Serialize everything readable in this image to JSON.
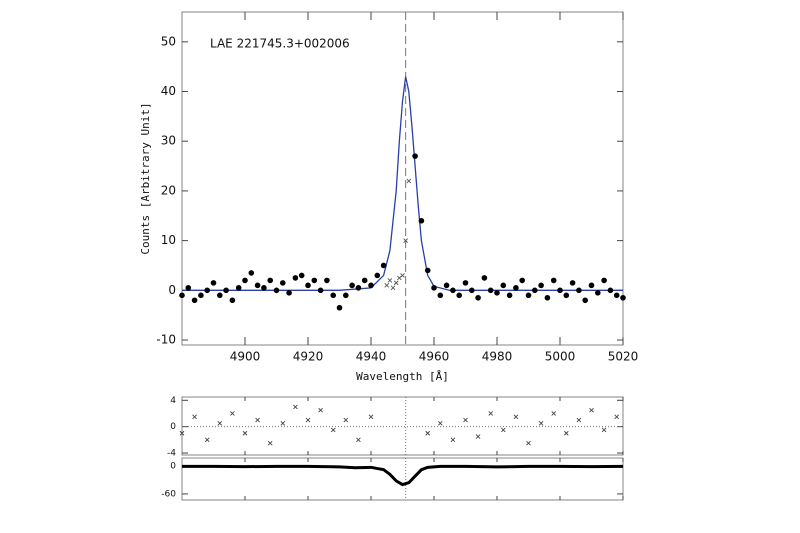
{
  "chart_data": [
    {
      "type": "scatter",
      "annotation": "LAE 221745.3+002006",
      "xlabel": "Wavelength [Å]",
      "ylabel": "Counts [Arbitrary Unit]",
      "xlim": [
        4880,
        5020
      ],
      "ylim": [
        -11,
        56
      ],
      "xticks": [
        4900,
        4920,
        4940,
        4960,
        4980,
        5000,
        5020
      ],
      "yticks": [
        -10,
        0,
        10,
        20,
        30,
        40,
        50
      ],
      "vline": 4951,
      "series": [
        {
          "marker": "line",
          "color": "#2a3fa8",
          "x": [
            4880,
            4930,
            4940,
            4944,
            4946,
            4948,
            4949,
            4950,
            4951,
            4952,
            4953,
            4954,
            4955,
            4956,
            4958,
            4960,
            4965,
            5020
          ],
          "values": [
            0,
            0,
            0.5,
            3,
            8,
            20,
            30,
            38,
            43,
            40,
            33,
            25,
            17,
            10,
            3,
            0.8,
            0,
            0
          ]
        },
        {
          "marker": "dot",
          "color": "#000000",
          "x": [
            4880,
            4882,
            4884,
            4886,
            4888,
            4890,
            4892,
            4894,
            4896,
            4898,
            4900,
            4902,
            4904,
            4906,
            4908,
            4910,
            4912,
            4914,
            4916,
            4918,
            4920,
            4922,
            4924,
            4926,
            4928,
            4930,
            4932,
            4934,
            4936,
            4938,
            4940,
            4942,
            4944,
            4954,
            4956,
            4958,
            4960,
            4962,
            4964,
            4966,
            4968,
            4970,
            4972,
            4974,
            4976,
            4978,
            4980,
            4982,
            4984,
            4986,
            4988,
            4990,
            4992,
            4994,
            4996,
            4998,
            5000,
            5002,
            5004,
            5006,
            5008,
            5010,
            5012,
            5014,
            5016,
            5018,
            5020
          ],
          "values": [
            -1,
            0.5,
            -2,
            -1,
            0,
            1.5,
            -1,
            0,
            -2,
            0.5,
            2,
            3.5,
            1,
            0.5,
            2,
            0,
            1.5,
            -0.5,
            2.5,
            3,
            1,
            2,
            0,
            2,
            -1,
            -3.5,
            -1,
            1,
            0.5,
            2,
            1,
            3,
            5,
            27,
            14,
            4,
            0.5,
            -1,
            1,
            0,
            -1,
            1.5,
            0,
            -1.5,
            2.5,
            0,
            -0.5,
            1,
            -1,
            0.5,
            2,
            -1,
            0,
            1,
            -1.5,
            2,
            0,
            -1,
            1.5,
            0,
            -2,
            1,
            -0.5,
            2,
            0,
            -1,
            -1.5
          ]
        },
        {
          "marker": "x",
          "color": "#555555",
          "x": [
            4945,
            4946,
            4947,
            4948,
            4949,
            4950,
            4951,
            4952
          ],
          "values": [
            1,
            2,
            0.5,
            1.5,
            2.5,
            3,
            10,
            22
          ]
        }
      ]
    },
    {
      "type": "scatter",
      "xlim": [
        4880,
        5020
      ],
      "ylim": [
        -4.3,
        4.5
      ],
      "yticks": [
        -4,
        0,
        4
      ],
      "vline": 4951,
      "hline": 0,
      "series": [
        {
          "marker": "x",
          "color": "#444444",
          "x": [
            4880,
            4884,
            4888,
            4892,
            4896,
            4900,
            4904,
            4908,
            4912,
            4916,
            4920,
            4924,
            4928,
            4932,
            4936,
            4940,
            4958,
            4962,
            4966,
            4970,
            4974,
            4978,
            4982,
            4986,
            4990,
            4994,
            4998,
            5002,
            5006,
            5010,
            5014,
            5018
          ],
          "values": [
            -1,
            1.5,
            -2,
            0.5,
            2,
            -1,
            1,
            -2.5,
            0.5,
            3,
            1,
            2.5,
            -0.5,
            1,
            -2,
            1.5,
            -1,
            0.5,
            -2,
            1,
            -1.5,
            2,
            -0.5,
            1.5,
            -2.5,
            0.5,
            2,
            -1,
            1,
            2.5,
            -0.5,
            1.5
          ]
        }
      ]
    },
    {
      "type": "scatter",
      "xlim": [
        4880,
        5020
      ],
      "ylim": [
        -73,
        17
      ],
      "yticks": [
        0,
        -60
      ],
      "vline": 4951,
      "series": [
        {
          "marker": "line",
          "color": "#000000",
          "x": [
            4880,
            4890,
            4900,
            4910,
            4920,
            4930,
            4935,
            4940,
            4944,
            4946,
            4948,
            4950,
            4952,
            4954,
            4956,
            4958,
            4962,
            4970,
            4980,
            4990,
            5000,
            5010,
            5020
          ],
          "values": [
            -1,
            -1,
            -1.5,
            -1,
            -1,
            -2,
            -4,
            -3,
            -8,
            -18,
            -32,
            -40,
            -36,
            -22,
            -8,
            -3,
            -1,
            -1,
            -2,
            -1,
            -1,
            -1.5,
            -1
          ]
        }
      ]
    }
  ]
}
